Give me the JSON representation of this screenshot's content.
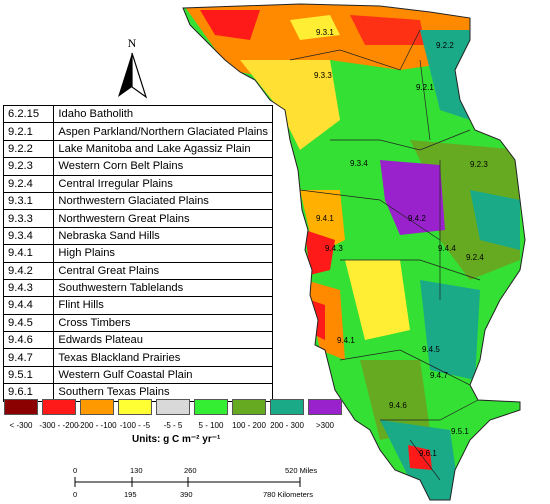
{
  "north_arrow": {
    "label": "N"
  },
  "regions": [
    {
      "code": "6.2.15",
      "name": "Idaho Batholith"
    },
    {
      "code": "9.2.1",
      "name": "Aspen Parkland/Northern Glaciated Plains"
    },
    {
      "code": "9.2.2",
      "name": "Lake Manitoba and Lake Agassiz Plain"
    },
    {
      "code": "9.2.3",
      "name": "Western Corn Belt Plains"
    },
    {
      "code": "9.2.4",
      "name": "Central Irregular Plains"
    },
    {
      "code": "9.3.1",
      "name": "Northwestern Glaciated Plains"
    },
    {
      "code": "9.3.3",
      "name": "Northwestern Great Plains"
    },
    {
      "code": "9.3.4",
      "name": "Nebraska Sand Hills"
    },
    {
      "code": "9.4.1",
      "name": "High Plains"
    },
    {
      "code": "9.4.2",
      "name": "Central Great Plains"
    },
    {
      "code": "9.4.3",
      "name": "Southwestern Tablelands"
    },
    {
      "code": "9.4.4",
      "name": "Flint Hills"
    },
    {
      "code": "9.4.5",
      "name": "Cross Timbers"
    },
    {
      "code": "9.4.6",
      "name": "Edwards Plateau"
    },
    {
      "code": "9.4.7",
      "name": "Texas Blackland Prairies"
    },
    {
      "code": "9.5.1",
      "name": "Western Gulf Coastal Plain"
    },
    {
      "code": "9.6.1",
      "name": "Southern Texas Plains"
    }
  ],
  "map_labels": [
    "9.3.1",
    "9.2.2",
    "9.3.3",
    "9.2.1",
    "9.3.4",
    "9.2.3",
    "9.4.1",
    "9.4.2",
    "9.4.3",
    "9.4.4",
    "9.2.4",
    "9.4.5",
    "9.4.1",
    "9.4.7",
    "9.4.6",
    "9.5.1",
    "9.6.1"
  ],
  "legend": {
    "units": "Units: g C m⁻² yr⁻¹",
    "classes": [
      {
        "label": "< -300",
        "color": "#8b0000"
      },
      {
        "label": "-300 - -200",
        "color": "#ff1a1a"
      },
      {
        "label": "-200 - -100",
        "color": "#ff9900"
      },
      {
        "label": "-100 - -5",
        "color": "#ffff33"
      },
      {
        "label": "-5 - 5",
        "color": "#d9d9d9"
      },
      {
        "label": "5 - 100",
        "color": "#33ee33"
      },
      {
        "label": "100 - 200",
        "color": "#66aa22"
      },
      {
        "label": "200 - 300",
        "color": "#1aaa88"
      },
      {
        "label": ">300",
        "color": "#9922cc"
      }
    ]
  },
  "scale_bar": {
    "miles_ticks": [
      "0",
      "130",
      "260",
      "520 Miles"
    ],
    "km_ticks": [
      "0",
      "195",
      "390",
      "780 Kilometers"
    ]
  }
}
